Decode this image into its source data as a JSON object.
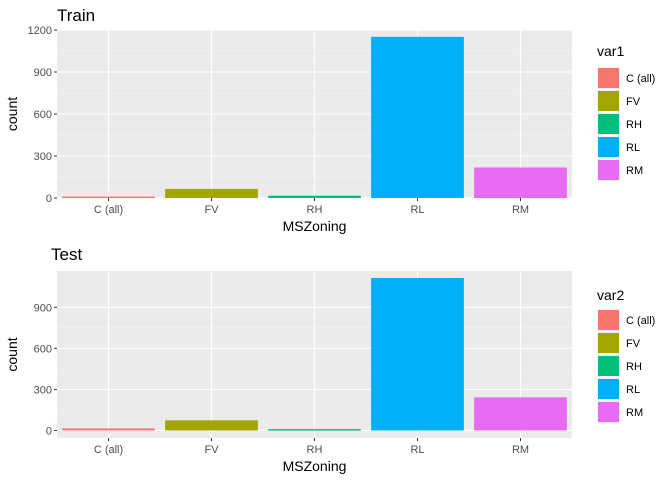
{
  "colors": {
    "C (all)": "#F8766D",
    "FV": "#A3A500",
    "RH": "#00BF7D",
    "RL": "#00B0F6",
    "RM": "#E76BF3"
  },
  "chart_data": [
    {
      "type": "bar",
      "title": "Train",
      "xlabel": "MSZoning",
      "ylabel": "count",
      "categories": [
        "C (all)",
        "FV",
        "RH",
        "RL",
        "RM"
      ],
      "values": [
        10,
        65,
        16,
        1151,
        218
      ],
      "ylim": [
        0,
        1200
      ],
      "yticks": [
        0,
        300,
        600,
        900,
        1200
      ],
      "legend_title": "var1",
      "legend_position": "right"
    },
    {
      "type": "bar",
      "title": "Test",
      "xlabel": "MSZoning",
      "ylabel": "count",
      "categories": [
        "C (all)",
        "FV",
        "RH",
        "RL",
        "RM"
      ],
      "values": [
        15,
        74,
        10,
        1114,
        242
      ],
      "ylim": [
        0,
        1200
      ],
      "yticks": [
        0,
        300,
        600,
        900
      ],
      "legend_title": "var2",
      "legend_position": "right"
    }
  ]
}
